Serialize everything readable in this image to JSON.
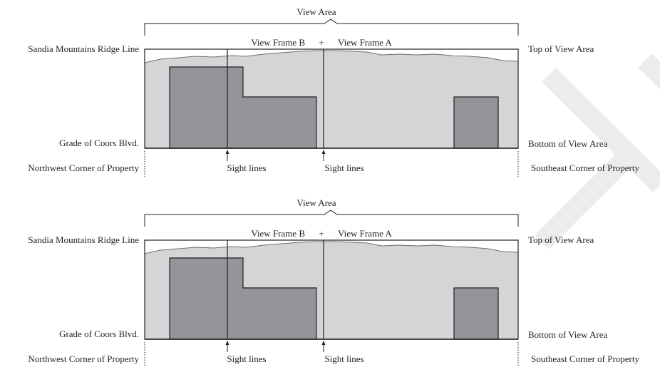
{
  "diagrams": [
    {
      "view_area_label": "View Area",
      "frame_b_label": "View Frame B",
      "plus_sign": "+",
      "frame_a_label": "View Frame A",
      "left_top_label": "Sandia Mountains Ridge Line",
      "left_bottom_label": "Grade of Coors Blvd.",
      "left_corner_label": "Northwest Corner of Property",
      "right_top_label": "Top of View Area",
      "right_bottom_label": "Bottom of View Area",
      "right_corner_label": "Southeast Corner of Property",
      "sight_line_b_label": "Sight lines",
      "sight_line_a_label": "Sight lines"
    },
    {
      "view_area_label": "View Area",
      "frame_b_label": "View Frame B",
      "plus_sign": "+",
      "frame_a_label": "View Frame A",
      "left_top_label": "Sandia Mountains Ridge Line",
      "left_bottom_label": "Grade of Coors Blvd.",
      "left_corner_label": "Northwest Corner of Property",
      "right_top_label": "Top of View Area",
      "right_bottom_label": "Bottom of View Area",
      "right_corner_label": "Southeast Corner of Property",
      "sight_line_b_label": "Sight lines",
      "sight_line_a_label": "Sight lines"
    }
  ],
  "colors": {
    "sky_fill": "#d4d5d7",
    "building_fill": "#939598",
    "ridge_stroke": "#6d6e71",
    "line": "#231f20",
    "watermark": "#ececec"
  }
}
